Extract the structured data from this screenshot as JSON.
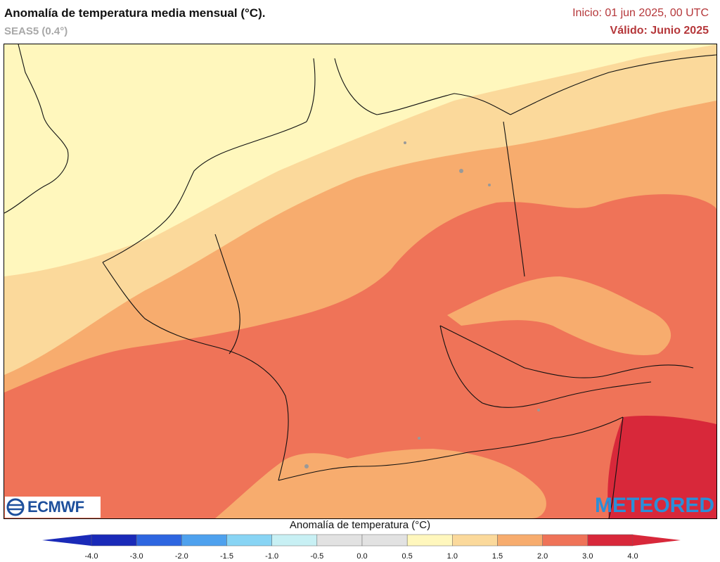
{
  "header": {
    "title": "Anomalía de temperatura media mensual (°C).",
    "model": "SEAS5 (0.4°)",
    "start": "Inicio: 01 jun 2025, 00 UTC",
    "valid": "Válido: Junio 2025"
  },
  "logos": {
    "left": "ECMWF",
    "right": "METEORED"
  },
  "legend": {
    "title": "Anomalía de temperatura (°C)",
    "ticks": [
      "-4.0",
      "-3.0",
      "-2.0",
      "-1.5",
      "-1.0",
      "-0.5",
      "0.0",
      "0.5",
      "1.0",
      "1.5",
      "2.0",
      "3.0",
      "4.0"
    ],
    "colors": [
      "#1a2ab8",
      "#2e66e0",
      "#4ea1ee",
      "#88d4f4",
      "#c8f0f4",
      "#e2e2e2",
      "#e2e2e2",
      "#fff7bd",
      "#fbd99b",
      "#f7ac6e",
      "#ef7358",
      "#d8283a"
    ]
  },
  "map": {
    "region": "Central Europe",
    "field": "temperature anomaly",
    "colors": {
      "level_0_5": "#fff7bd",
      "level_1_0": "#fbd99b",
      "level_1_5": "#f7ac6e",
      "level_2_0": "#ef7358",
      "level_3_0": "#d8283a"
    }
  }
}
